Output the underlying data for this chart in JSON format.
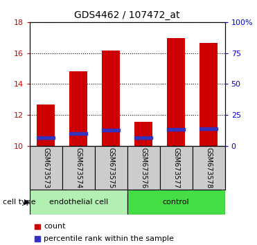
{
  "title": "GDS4462 / 107472_at",
  "samples": [
    "GSM673573",
    "GSM673574",
    "GSM673575",
    "GSM673576",
    "GSM673577",
    "GSM673578"
  ],
  "bar_tops": [
    12.65,
    14.82,
    16.15,
    11.55,
    16.95,
    16.65
  ],
  "bar_bottom": 10.0,
  "blue_marker_heights": [
    10.52,
    10.78,
    11.0,
    10.52,
    11.05,
    11.1
  ],
  "blue_marker_size": 0.18,
  "bar_color": "#cc0000",
  "blue_color": "#3333bb",
  "ylim_left": [
    10,
    18
  ],
  "ylim_right": [
    0,
    100
  ],
  "yticks_left": [
    10,
    12,
    14,
    16,
    18
  ],
  "yticks_right": [
    0,
    25,
    50,
    75,
    100
  ],
  "ytick_labels_right": [
    "0",
    "25",
    "50",
    "75",
    "100%"
  ],
  "group1_label": "endothelial cell",
  "group2_label": "control",
  "group1_color": "#b2f0b2",
  "group2_color": "#44dd44",
  "cell_type_label": "cell type",
  "legend_count_label": "count",
  "legend_percentile_label": "percentile rank within the sample",
  "bar_width": 0.55,
  "bg_color": "#ffffff",
  "plot_bg": "#ffffff",
  "tick_label_color_left": "#cc0000",
  "tick_label_color_right": "#0000cc",
  "title_color": "#000000",
  "xlabel_bg": "#cccccc"
}
